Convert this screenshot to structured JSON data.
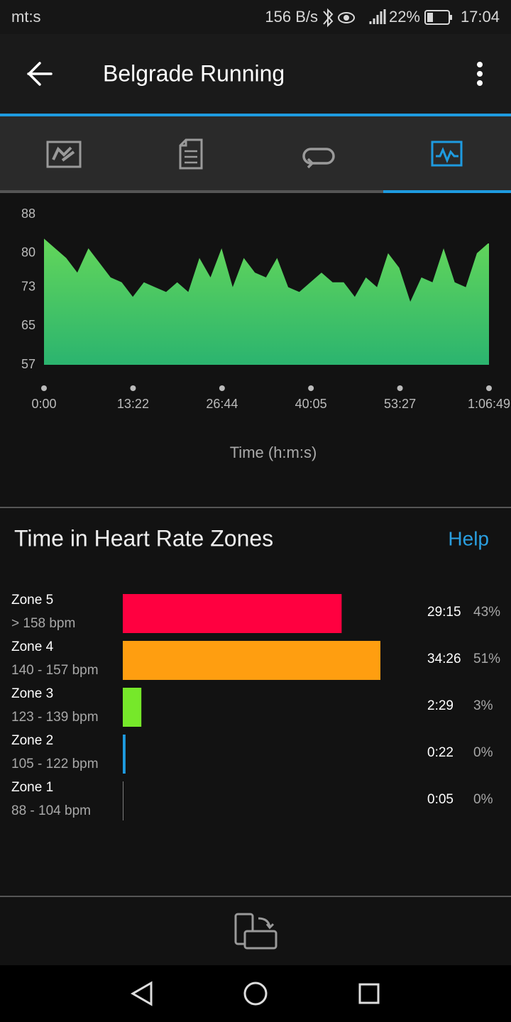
{
  "status_bar": {
    "carrier": "mt:s",
    "speed": "156 B/s",
    "battery": "22%",
    "time": "17:04"
  },
  "app_bar": {
    "title": "Belgrade Running"
  },
  "chart_data": [
    {
      "type": "area",
      "x_label": "Time (h:m:s)",
      "color_top": "#63d65a",
      "color_bottom": "#2bb46f",
      "xlim": [
        0,
        4009
      ],
      "xticks": [
        {
          "value": 0,
          "label": "0:00"
        },
        {
          "value": 802,
          "label": "13:22"
        },
        {
          "value": 1604,
          "label": "26:44"
        },
        {
          "value": 2405,
          "label": "40:05"
        },
        {
          "value": 3207,
          "label": "53:27"
        },
        {
          "value": 4009,
          "label": "1:06:49"
        }
      ],
      "ylim": [
        57,
        88
      ],
      "yticks": [
        57,
        65,
        73,
        80,
        88
      ],
      "x": [
        0,
        100,
        200,
        300,
        400,
        500,
        600,
        700,
        800,
        900,
        1000,
        1100,
        1200,
        1300,
        1400,
        1500,
        1600,
        1700,
        1800,
        1900,
        2000,
        2100,
        2200,
        2300,
        2400,
        2500,
        2600,
        2700,
        2800,
        2900,
        3000,
        3100,
        3200,
        3300,
        3400,
        3500,
        3600,
        3700,
        3800,
        3900,
        4000,
        4009
      ],
      "values": [
        83,
        81,
        79,
        76,
        81,
        78,
        75,
        74,
        71,
        74,
        73,
        72,
        74,
        72,
        79,
        75,
        81,
        73,
        79,
        76,
        75,
        79,
        73,
        72,
        74,
        76,
        74,
        74,
        71,
        75,
        73,
        80,
        77,
        70,
        75,
        74,
        81,
        74,
        73,
        80,
        82,
        82
      ]
    },
    {
      "type": "bar",
      "title": "Time in Heart Rate Zones",
      "link": "Help",
      "categories": [
        "Zone 5",
        "Zone 4",
        "Zone 3",
        "Zone 2",
        "Zone 1"
      ],
      "ranges": [
        "> 158 bpm",
        "140 - 157 bpm",
        "123 - 139 bpm",
        "105 - 122 bpm",
        "88 - 104 bpm"
      ],
      "colors": [
        "#ff0040",
        "#ff9e10",
        "#76e82a",
        "#1e9be0",
        "#8a8a8a"
      ],
      "values": [
        1755,
        2066,
        149,
        22,
        5
      ],
      "value_labels": [
        "29:15",
        "34:26",
        "2:29",
        "0:22",
        "0:05"
      ],
      "percents": [
        43,
        51,
        3,
        0,
        0
      ],
      "percent_labels": [
        "43%",
        "51%",
        "3%",
        "0%",
        "0%"
      ]
    }
  ]
}
